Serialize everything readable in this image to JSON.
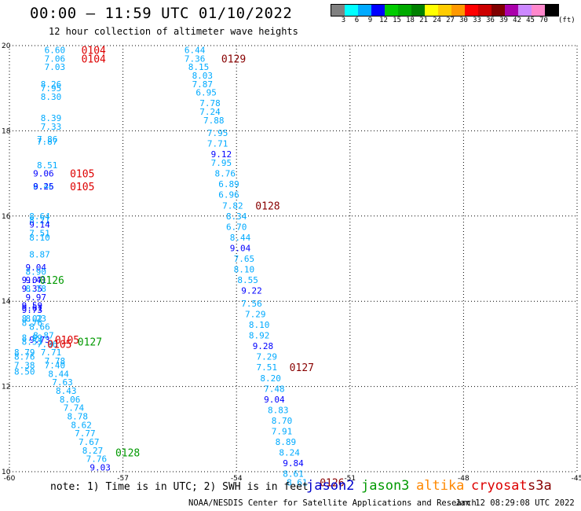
{
  "header": {
    "title": "00:00 – 11:59 UTC 01/10/2022",
    "subtitle": "12 hour collection of altimeter wave heights"
  },
  "colorbar": {
    "colors": [
      "#808080",
      "#00ffff",
      "#00aaff",
      "#0000ff",
      "#00cc00",
      "#00aa00",
      "#008000",
      "#ffff00",
      "#ffcc00",
      "#ff9900",
      "#ff0000",
      "#cc0000",
      "#800000",
      "#aa00aa",
      "#cc88ff",
      "#ff88cc",
      "#000000"
    ],
    "labels": [
      "3",
      "6",
      "9",
      "12",
      "15",
      "18",
      "21",
      "24",
      "27",
      "30",
      "33",
      "36",
      "39",
      "42",
      "45",
      "70"
    ],
    "unit": "(ft)"
  },
  "footer": {
    "note": "note: 1) Time is in UTC; 2) SWH is in feet",
    "satellites": [
      {
        "name": "jason2",
        "color": "#0000cc"
      },
      {
        "name": "jason3",
        "color": "#009900"
      },
      {
        "name": "altika",
        "color": "#ff8800"
      },
      {
        "name": "cryosat",
        "color": "#dd0000"
      },
      {
        "name": "s3a",
        "color": "#880000"
      }
    ],
    "credit": "NOAA/NESDIS Center for Satellite Applications and Research",
    "timestamp": "Jan 12 08:29:08 UTC 2022"
  },
  "chart_data": {
    "type": "scatter",
    "title": "00:00 – 11:59 UTC 01/10/2022",
    "subtitle": "12 hour collection of altimeter wave heights",
    "xlim": [
      -60,
      -45
    ],
    "ylim": [
      10,
      20
    ],
    "xticks": [
      -60,
      -57,
      -54,
      -51,
      -48,
      -45
    ],
    "yticks": [
      10,
      12,
      14,
      16,
      18,
      20
    ],
    "grid": true,
    "units": "feet",
    "points": [
      {
        "lon": -58.8,
        "lat": 19.9,
        "v": "6.60",
        "c": "#00aaff"
      },
      {
        "lon": -58.8,
        "lat": 19.7,
        "v": "7.06",
        "c": "#00aaff"
      },
      {
        "lon": -58.8,
        "lat": 19.5,
        "v": "7.03",
        "c": "#00aaff"
      },
      {
        "lon": -58.9,
        "lat": 19.1,
        "v": "8.26",
        "c": "#00aaff"
      },
      {
        "lon": -58.9,
        "lat": 19.0,
        "v": "7.95",
        "c": "#00aaff"
      },
      {
        "lon": -58.9,
        "lat": 18.8,
        "v": "8.30",
        "c": "#00aaff"
      },
      {
        "lon": -58.9,
        "lat": 18.3,
        "v": "8.39",
        "c": "#00aaff"
      },
      {
        "lon": -58.9,
        "lat": 18.1,
        "v": "7.33",
        "c": "#00aaff"
      },
      {
        "lon": -59.0,
        "lat": 17.8,
        "v": "7.86",
        "c": "#00aaff"
      },
      {
        "lon": -59.0,
        "lat": 17.75,
        "v": "7.87",
        "c": "#00aaff"
      },
      {
        "lon": -59.0,
        "lat": 17.2,
        "v": "8.51",
        "c": "#00aaff"
      },
      {
        "lon": -59.1,
        "lat": 17.0,
        "v": "9.06",
        "c": "#0000ff"
      },
      {
        "lon": -59.1,
        "lat": 16.7,
        "v": "8.46",
        "c": "#00aaff"
      },
      {
        "lon": -59.1,
        "lat": 16.7,
        "v": "9.25",
        "c": "#0000ff"
      },
      {
        "lon": -59.2,
        "lat": 16.0,
        "v": "8.64",
        "c": "#00aaff"
      },
      {
        "lon": -59.2,
        "lat": 15.9,
        "v": "8.21",
        "c": "#00aaff"
      },
      {
        "lon": -59.2,
        "lat": 15.8,
        "v": "9.14",
        "c": "#0000ff"
      },
      {
        "lon": -59.2,
        "lat": 15.6,
        "v": "7.51",
        "c": "#00aaff"
      },
      {
        "lon": -59.2,
        "lat": 15.5,
        "v": "8.10",
        "c": "#00aaff"
      },
      {
        "lon": -59.2,
        "lat": 15.1,
        "v": "8.87",
        "c": "#00aaff"
      },
      {
        "lon": -59.3,
        "lat": 14.8,
        "v": "9.04",
        "c": "#0000ff"
      },
      {
        "lon": -59.3,
        "lat": 14.7,
        "v": "8.90",
        "c": "#00aaff"
      },
      {
        "lon": -59.4,
        "lat": 14.5,
        "v": "9.07",
        "c": "#0000ff"
      },
      {
        "lon": -59.3,
        "lat": 14.5,
        "v": "9.41",
        "c": "#0000ff"
      },
      {
        "lon": -59.4,
        "lat": 14.3,
        "v": "9.35",
        "c": "#0000ff"
      },
      {
        "lon": -59.3,
        "lat": 14.3,
        "v": "8.78",
        "c": "#00aaff"
      },
      {
        "lon": -59.3,
        "lat": 14.1,
        "v": "9.97",
        "c": "#0000ff"
      },
      {
        "lon": -59.4,
        "lat": 13.9,
        "v": "9.59",
        "c": "#0000ff"
      },
      {
        "lon": -59.4,
        "lat": 13.85,
        "v": "9.61",
        "c": "#0000ff"
      },
      {
        "lon": -59.4,
        "lat": 13.8,
        "v": "9.73",
        "c": "#0000ff"
      },
      {
        "lon": -59.3,
        "lat": 13.6,
        "v": "8.23",
        "c": "#00aaff"
      },
      {
        "lon": -59.4,
        "lat": 13.6,
        "v": "8.02",
        "c": "#00aaff"
      },
      {
        "lon": -59.4,
        "lat": 13.5,
        "v": "8.76",
        "c": "#00aaff"
      },
      {
        "lon": -59.2,
        "lat": 13.4,
        "v": "8.66",
        "c": "#00aaff"
      },
      {
        "lon": -59.1,
        "lat": 13.2,
        "v": "8.87",
        "c": "#00aaff"
      },
      {
        "lon": -59.2,
        "lat": 13.1,
        "v": "9.73",
        "c": "#0000ff"
      },
      {
        "lon": -59.4,
        "lat": 13.15,
        "v": "8.99",
        "c": "#00aaff"
      },
      {
        "lon": -59.4,
        "lat": 13.05,
        "v": "8.53",
        "c": "#00aaff"
      },
      {
        "lon": -59.0,
        "lat": 13.0,
        "v": "7.96",
        "c": "#00aaff"
      },
      {
        "lon": -59.6,
        "lat": 12.8,
        "v": "8.79",
        "c": "#00aaff"
      },
      {
        "lon": -59.6,
        "lat": 12.7,
        "v": "8.76",
        "c": "#00aaff"
      },
      {
        "lon": -58.9,
        "lat": 12.8,
        "v": "7.71",
        "c": "#00aaff"
      },
      {
        "lon": -58.8,
        "lat": 12.6,
        "v": "7.78",
        "c": "#00aaff"
      },
      {
        "lon": -59.6,
        "lat": 12.5,
        "v": "7.38",
        "c": "#00aaff"
      },
      {
        "lon": -58.8,
        "lat": 12.5,
        "v": "7.40",
        "c": "#00aaff"
      },
      {
        "lon": -59.6,
        "lat": 12.35,
        "v": "8.50",
        "c": "#00aaff"
      },
      {
        "lon": -58.7,
        "lat": 12.3,
        "v": "8.44",
        "c": "#00aaff"
      },
      {
        "lon": -58.6,
        "lat": 12.1,
        "v": "7.63",
        "c": "#00aaff"
      },
      {
        "lon": -58.5,
        "lat": 11.9,
        "v": "8.43",
        "c": "#00aaff"
      },
      {
        "lon": -58.4,
        "lat": 11.7,
        "v": "8.06",
        "c": "#00aaff"
      },
      {
        "lon": -58.3,
        "lat": 11.5,
        "v": "7.74",
        "c": "#00aaff"
      },
      {
        "lon": -58.2,
        "lat": 11.3,
        "v": "8.78",
        "c": "#00aaff"
      },
      {
        "lon": -58.1,
        "lat": 11.1,
        "v": "8.62",
        "c": "#00aaff"
      },
      {
        "lon": -58.0,
        "lat": 10.9,
        "v": "7.77",
        "c": "#00aaff"
      },
      {
        "lon": -57.9,
        "lat": 10.7,
        "v": "7.67",
        "c": "#00aaff"
      },
      {
        "lon": -57.8,
        "lat": 10.5,
        "v": "8.27",
        "c": "#00aaff"
      },
      {
        "lon": -57.7,
        "lat": 10.3,
        "v": "7.76",
        "c": "#00aaff"
      },
      {
        "lon": -57.6,
        "lat": 10.1,
        "v": "9.03",
        "c": "#0000ff"
      },
      {
        "lon": -55.1,
        "lat": 19.9,
        "v": "6.44",
        "c": "#00aaff"
      },
      {
        "lon": -55.1,
        "lat": 19.7,
        "v": "7.36",
        "c": "#00aaff"
      },
      {
        "lon": -55.0,
        "lat": 19.5,
        "v": "8.15",
        "c": "#00aaff"
      },
      {
        "lon": -54.9,
        "lat": 19.3,
        "v": "8.03",
        "c": "#00aaff"
      },
      {
        "lon": -54.9,
        "lat": 19.1,
        "v": "7.87",
        "c": "#00aaff"
      },
      {
        "lon": -54.8,
        "lat": 18.9,
        "v": "6.95",
        "c": "#00aaff"
      },
      {
        "lon": -54.7,
        "lat": 18.65,
        "v": "7.78",
        "c": "#00aaff"
      },
      {
        "lon": -54.7,
        "lat": 18.45,
        "v": "7.24",
        "c": "#00aaff"
      },
      {
        "lon": -54.6,
        "lat": 18.25,
        "v": "7.88",
        "c": "#00aaff"
      },
      {
        "lon": -54.5,
        "lat": 17.95,
        "v": "7.95",
        "c": "#00aaff"
      },
      {
        "lon": -54.5,
        "lat": 17.7,
        "v": "7.71",
        "c": "#00aaff"
      },
      {
        "lon": -54.4,
        "lat": 17.45,
        "v": "9.12",
        "c": "#0000ff"
      },
      {
        "lon": -54.4,
        "lat": 17.25,
        "v": "7.95",
        "c": "#00aaff"
      },
      {
        "lon": -54.3,
        "lat": 17.0,
        "v": "8.76",
        "c": "#00aaff"
      },
      {
        "lon": -54.2,
        "lat": 16.75,
        "v": "6.89",
        "c": "#00aaff"
      },
      {
        "lon": -54.2,
        "lat": 16.5,
        "v": "6.96",
        "c": "#00aaff"
      },
      {
        "lon": -54.1,
        "lat": 16.25,
        "v": "7.82",
        "c": "#00aaff"
      },
      {
        "lon": -54.0,
        "lat": 16.0,
        "v": "8.34",
        "c": "#00aaff"
      },
      {
        "lon": -54.0,
        "lat": 15.75,
        "v": "6.70",
        "c": "#00aaff"
      },
      {
        "lon": -53.9,
        "lat": 15.5,
        "v": "8.44",
        "c": "#00aaff"
      },
      {
        "lon": -53.9,
        "lat": 15.25,
        "v": "9.04",
        "c": "#0000ff"
      },
      {
        "lon": -53.8,
        "lat": 15.0,
        "v": "7.65",
        "c": "#00aaff"
      },
      {
        "lon": -53.8,
        "lat": 14.75,
        "v": "8.10",
        "c": "#00aaff"
      },
      {
        "lon": -53.7,
        "lat": 14.5,
        "v": "8.55",
        "c": "#00aaff"
      },
      {
        "lon": -53.6,
        "lat": 14.25,
        "v": "9.22",
        "c": "#0000ff"
      },
      {
        "lon": -53.6,
        "lat": 13.95,
        "v": "7.56",
        "c": "#00aaff"
      },
      {
        "lon": -53.5,
        "lat": 13.7,
        "v": "7.29",
        "c": "#00aaff"
      },
      {
        "lon": -53.4,
        "lat": 13.45,
        "v": "8.10",
        "c": "#00aaff"
      },
      {
        "lon": -53.4,
        "lat": 13.2,
        "v": "8.92",
        "c": "#00aaff"
      },
      {
        "lon": -53.3,
        "lat": 12.95,
        "v": "9.28",
        "c": "#0000ff"
      },
      {
        "lon": -53.2,
        "lat": 12.7,
        "v": "7.29",
        "c": "#00aaff"
      },
      {
        "lon": -53.2,
        "lat": 12.45,
        "v": "7.51",
        "c": "#00aaff"
      },
      {
        "lon": -53.1,
        "lat": 12.2,
        "v": "8.20",
        "c": "#00aaff"
      },
      {
        "lon": -53.0,
        "lat": 11.95,
        "v": "7.48",
        "c": "#00aaff"
      },
      {
        "lon": -53.0,
        "lat": 11.7,
        "v": "9.04",
        "c": "#0000ff"
      },
      {
        "lon": -52.9,
        "lat": 11.45,
        "v": "8.83",
        "c": "#00aaff"
      },
      {
        "lon": -52.8,
        "lat": 11.2,
        "v": "8.70",
        "c": "#00aaff"
      },
      {
        "lon": -52.8,
        "lat": 10.95,
        "v": "7.91",
        "c": "#00aaff"
      },
      {
        "lon": -52.7,
        "lat": 10.7,
        "v": "8.89",
        "c": "#00aaff"
      },
      {
        "lon": -52.6,
        "lat": 10.45,
        "v": "8.24",
        "c": "#00aaff"
      },
      {
        "lon": -52.5,
        "lat": 10.2,
        "v": "9.84",
        "c": "#0000ff"
      },
      {
        "lon": -52.5,
        "lat": 9.95,
        "v": "8.61",
        "c": "#00aaff"
      },
      {
        "lon": -52.4,
        "lat": 9.75,
        "v": "8.61",
        "c": "#00aaff"
      }
    ],
    "annotations": [
      {
        "lon": -58.1,
        "lat": 19.9,
        "text": "0104",
        "c": "#dd0000"
      },
      {
        "lon": -58.1,
        "lat": 19.7,
        "text": "0104",
        "c": "#dd0000"
      },
      {
        "lon": -54.4,
        "lat": 19.7,
        "text": "0129",
        "c": "#880000"
      },
      {
        "lon": -58.4,
        "lat": 17.0,
        "text": "0105",
        "c": "#dd0000"
      },
      {
        "lon": -58.4,
        "lat": 16.7,
        "text": "0105",
        "c": "#dd0000"
      },
      {
        "lon": -53.5,
        "lat": 16.25,
        "text": "0128",
        "c": "#880000"
      },
      {
        "lon": -59.2,
        "lat": 14.5,
        "text": "0126",
        "c": "#009900"
      },
      {
        "lon": -58.8,
        "lat": 13.1,
        "text": "0105",
        "c": "#dd0000"
      },
      {
        "lon": -58.2,
        "lat": 13.05,
        "text": "0127",
        "c": "#009900"
      },
      {
        "lon": -59.0,
        "lat": 13.0,
        "text": "0105",
        "c": "#dd0000"
      },
      {
        "lon": -52.6,
        "lat": 12.45,
        "text": "0127",
        "c": "#880000"
      },
      {
        "lon": -57.2,
        "lat": 10.45,
        "text": "0128",
        "c": "#009900"
      },
      {
        "lon": -51.8,
        "lat": 9.75,
        "text": "0126",
        "c": "#880000"
      }
    ]
  }
}
